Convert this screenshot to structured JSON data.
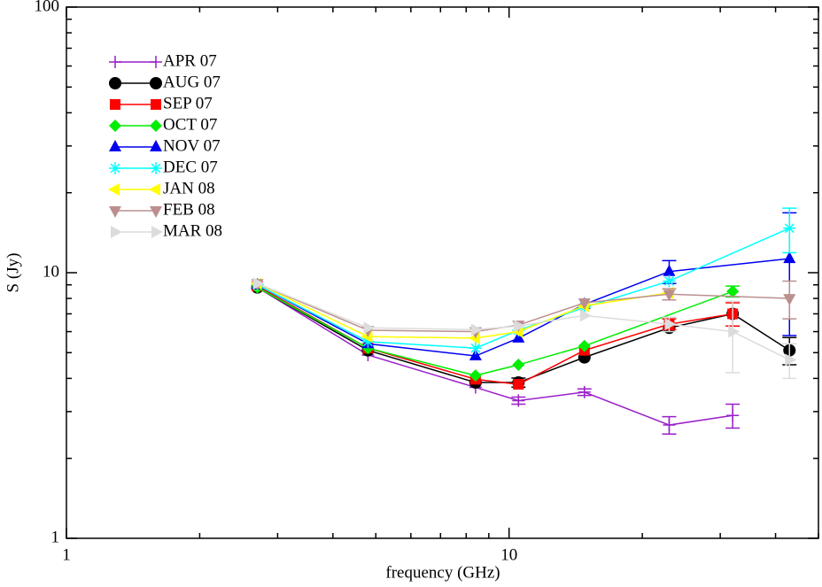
{
  "chart_data": {
    "type": "line",
    "xlabel": "frequency (GHz)",
    "ylabel": "S (Jy)",
    "xscale": "log",
    "yscale": "log",
    "xlim": [
      1,
      50
    ],
    "ylim": [
      1,
      100
    ],
    "xticks": [
      1,
      10
    ],
    "yticks": [
      1,
      10,
      100
    ],
    "xminorticks": [
      2,
      3,
      4,
      5,
      6,
      7,
      8,
      9,
      20,
      30,
      40,
      50
    ],
    "yminorticks": [
      2,
      3,
      4,
      5,
      6,
      7,
      8,
      9,
      20,
      30,
      40,
      50,
      60,
      70,
      80,
      90
    ],
    "legend": "upper left",
    "series": [
      {
        "name": "APR 07",
        "color": "#9a1fc8",
        "marker": "plus",
        "x": [
          2.7,
          4.8,
          8.4,
          10.5,
          14.8,
          23,
          32
        ],
        "values": [
          8.8,
          4.9,
          3.7,
          3.3,
          3.55,
          2.67,
          2.9
        ],
        "errors": [
          null,
          null,
          null,
          0.1,
          0.1,
          0.2,
          0.3
        ]
      },
      {
        "name": "AUG 07",
        "color": "#000000",
        "marker": "circle",
        "x": [
          2.7,
          4.8,
          8.4,
          10.5,
          14.8,
          23,
          32,
          43
        ],
        "values": [
          8.8,
          5.1,
          3.86,
          3.86,
          4.8,
          6.2,
          7.0,
          5.1
        ],
        "errors": [
          null,
          null,
          null,
          0.15,
          null,
          null,
          null,
          0.6
        ]
      },
      {
        "name": "SEP 07",
        "color": "#ff0000",
        "marker": "square",
        "x": [
          2.7,
          4.8,
          8.4,
          10.5,
          14.8,
          23,
          32
        ],
        "values": [
          8.9,
          5.2,
          3.97,
          3.8,
          5.1,
          6.4,
          7.0
        ],
        "errors": [
          null,
          null,
          null,
          null,
          null,
          0.3,
          0.7
        ]
      },
      {
        "name": "OCT 07",
        "color": "#00ee00",
        "marker": "diamond",
        "x": [
          2.7,
          4.8,
          8.4,
          10.5,
          14.8,
          32
        ],
        "values": [
          8.8,
          5.2,
          4.1,
          4.5,
          5.3,
          8.5
        ],
        "errors": [
          null,
          null,
          null,
          null,
          null,
          0.4
        ]
      },
      {
        "name": "NOV 07",
        "color": "#0000ee",
        "marker": "triangle-up",
        "x": [
          2.7,
          4.8,
          8.4,
          10.5,
          14.8,
          23,
          43
        ],
        "values": [
          9.0,
          5.4,
          4.86,
          5.67,
          7.6,
          10.1,
          11.3
        ],
        "errors": [
          null,
          null,
          null,
          null,
          null,
          1.0,
          5.5
        ]
      },
      {
        "name": "DEC 07",
        "color": "#00ffff",
        "marker": "asterisk",
        "x": [
          2.7,
          4.8,
          8.4,
          10.5,
          14.8,
          23,
          43
        ],
        "values": [
          9.0,
          5.5,
          5.2,
          6.07,
          7.4,
          9.3,
          14.7
        ],
        "errors": [
          null,
          null,
          null,
          null,
          null,
          null,
          2.8
        ]
      },
      {
        "name": "JAN 08",
        "color": "#ffff00",
        "marker": "triangle-left",
        "x": [
          2.7,
          4.8,
          8.4,
          10.5,
          14.8,
          23
        ],
        "values": [
          9.1,
          5.75,
          5.67,
          6.0,
          7.5,
          8.4
        ],
        "errors": [
          null,
          null,
          null,
          null,
          null,
          null
        ]
      },
      {
        "name": "FEB 08",
        "color": "#bc8f8f",
        "marker": "triangle-down",
        "x": [
          2.7,
          4.8,
          8.4,
          10.5,
          14.8,
          23,
          43
        ],
        "values": [
          9.1,
          6.07,
          6.0,
          6.35,
          7.7,
          8.3,
          8.0
        ],
        "errors": [
          null,
          null,
          null,
          null,
          null,
          0.4,
          1.3
        ]
      },
      {
        "name": "MAR 08",
        "color": "#dcdcdc",
        "marker": "triangle-right",
        "x": [
          2.7,
          4.8,
          8.4,
          10.5,
          14.8,
          23,
          32,
          43
        ],
        "values": [
          9.1,
          6.2,
          6.1,
          6.3,
          6.9,
          6.4,
          6.0,
          4.7
        ],
        "errors": [
          null,
          null,
          null,
          null,
          null,
          0.4,
          1.8,
          0.7
        ]
      }
    ]
  }
}
